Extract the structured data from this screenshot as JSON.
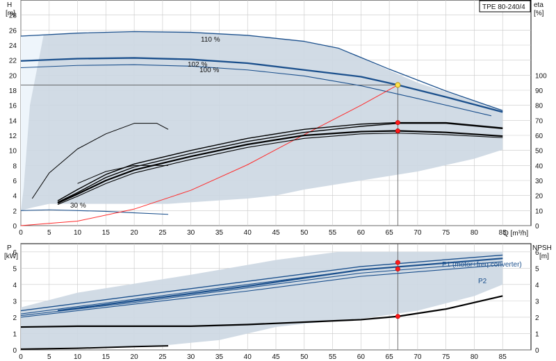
{
  "header": {
    "model": "TPE 80-240/4"
  },
  "colors": {
    "area": "#cdd8e3",
    "area_light": "#eef5fb",
    "curve_dark": "#1a4f8c",
    "grid": "#c8c8c8",
    "system": "#ff2a2a",
    "marker": "#ff1a1a",
    "duty": "#ffe34d",
    "black": "#000000"
  },
  "chart_data": [
    {
      "type": "line",
      "id": "head_efficiency",
      "x_axis": {
        "label": "Q [m³/h]",
        "range": [
          0,
          90
        ],
        "ticks": [
          0,
          5,
          10,
          15,
          20,
          25,
          30,
          35,
          40,
          45,
          50,
          55,
          60,
          65,
          70,
          75,
          80,
          85
        ]
      },
      "y_axis_left": {
        "label_top": "H",
        "label_unit": "[m]",
        "range": [
          0,
          30
        ],
        "ticks": [
          0,
          2,
          4,
          6,
          8,
          10,
          12,
          14,
          16,
          18,
          20,
          22,
          24,
          26,
          28
        ]
      },
      "y_axis_right": {
        "label_top": "eta",
        "label_unit": "[%]",
        "range": [
          0,
          150
        ],
        "ticks": [
          0,
          10,
          20,
          30,
          40,
          50,
          60,
          70,
          80,
          90,
          100
        ]
      },
      "grid": true,
      "annotations": [
        "110 %",
        "102 %",
        "100 %",
        "30 %"
      ],
      "operating_area": [
        [
          0,
          25.2
        ],
        [
          10,
          25.6
        ],
        [
          20,
          25.8
        ],
        [
          30,
          25.7
        ],
        [
          40,
          25.3
        ],
        [
          50,
          24.5
        ],
        [
          56,
          23.6
        ],
        [
          70,
          19.0
        ],
        [
          85,
          15.3
        ],
        [
          85,
          10.1
        ],
        [
          80,
          8.9
        ],
        [
          70,
          7.2
        ],
        [
          60,
          6.0
        ],
        [
          50,
          4.8
        ],
        [
          45,
          4.0
        ],
        [
          40,
          3.6
        ],
        [
          26,
          2.9
        ],
        [
          20,
          2.9
        ],
        [
          10,
          2.9
        ],
        [
          5,
          2.9
        ],
        [
          2,
          2.4
        ],
        [
          0,
          2.0
        ]
      ],
      "operating_area_light": [
        [
          0,
          25.2
        ],
        [
          4,
          25.3
        ],
        [
          1.6,
          16.0
        ],
        [
          0.5,
          5.0
        ],
        [
          0,
          2.0
        ]
      ],
      "series": [
        {
          "name": "110 %",
          "role": "head",
          "axis": "left",
          "width": 1.3,
          "points": [
            [
              0,
              25.2
            ],
            [
              10,
              25.6
            ],
            [
              20,
              25.8
            ],
            [
              30,
              25.7
            ],
            [
              40,
              25.3
            ],
            [
              50,
              24.5
            ],
            [
              56,
              23.6
            ],
            [
              65,
              20.8
            ],
            [
              75,
              17.9
            ],
            [
              85,
              15.3
            ]
          ]
        },
        {
          "name": "102 %",
          "role": "head",
          "axis": "left",
          "width": 2.3,
          "points": [
            [
              0,
              21.9
            ],
            [
              10,
              22.2
            ],
            [
              20,
              22.3
            ],
            [
              30,
              22.1
            ],
            [
              40,
              21.6
            ],
            [
              50,
              20.7
            ],
            [
              60,
              19.8
            ],
            [
              66.5,
              18.7
            ],
            [
              75,
              17.1
            ],
            [
              85,
              15.1
            ]
          ]
        },
        {
          "name": "100 %",
          "role": "head",
          "axis": "left",
          "width": 1.1,
          "points": [
            [
              0,
              21.0
            ],
            [
              10,
              21.3
            ],
            [
              20,
              21.4
            ],
            [
              30,
              21.2
            ],
            [
              40,
              20.7
            ],
            [
              50,
              19.9
            ],
            [
              60,
              18.6
            ],
            [
              70,
              16.9
            ],
            [
              83,
              14.6
            ]
          ]
        },
        {
          "name": "30 %",
          "role": "head",
          "axis": "left",
          "width": 1.1,
          "points": [
            [
              0,
              2.0
            ],
            [
              5,
              2.1
            ],
            [
              10,
              2.0
            ],
            [
              15,
              1.9
            ],
            [
              20,
              1.7
            ],
            [
              26,
              1.5
            ]
          ]
        },
        {
          "name": "",
          "role": "system",
          "axis": "left",
          "width": 1,
          "points": [
            [
              0,
              0
            ],
            [
              10,
              0.6
            ],
            [
              20,
              2.2
            ],
            [
              30,
              4.7
            ],
            [
              40,
              8.1
            ],
            [
              50,
              12.1
            ],
            [
              60,
              16.0
            ],
            [
              66.5,
              18.7
            ]
          ]
        },
        {
          "name": "",
          "role": "eta",
          "axis": "right",
          "width": 1,
          "points": [
            [
              2,
              18
            ],
            [
              5,
              35
            ],
            [
              10,
              51
            ],
            [
              15,
              61
            ],
            [
              20,
              68
            ],
            [
              24,
              68
            ],
            [
              26,
              64
            ]
          ]
        },
        {
          "name": "",
          "role": "eta",
          "axis": "right",
          "width": 1.4,
          "points": [
            [
              6.5,
              15.5
            ],
            [
              10,
              22
            ],
            [
              15,
              32
            ],
            [
              20,
              39
            ],
            [
              30,
              48
            ],
            [
              40,
              56
            ],
            [
              50,
              62
            ],
            [
              60,
              66
            ],
            [
              66.5,
              68
            ],
            [
              75,
              68
            ],
            [
              85,
              64.5
            ]
          ]
        },
        {
          "name": "",
          "role": "eta",
          "axis": "right",
          "width": 1.4,
          "points": [
            [
              6.5,
              16.5
            ],
            [
              10,
              24
            ],
            [
              15,
              34
            ],
            [
              20,
              41
            ],
            [
              30,
              50
            ],
            [
              40,
              58
            ],
            [
              50,
              64
            ],
            [
              60,
              67.5
            ],
            [
              66.5,
              68.5
            ],
            [
              75,
              68.5
            ],
            [
              85,
              65
            ]
          ]
        },
        {
          "name": "",
          "role": "eta",
          "axis": "right",
          "width": 2.2,
          "points": [
            [
              6.5,
              15
            ],
            [
              10,
              21
            ],
            [
              15,
              30
            ],
            [
              20,
              37
            ],
            [
              30,
              46
            ],
            [
              40,
              54
            ],
            [
              50,
              60
            ],
            [
              60,
              62.5
            ],
            [
              66.5,
              63
            ],
            [
              75,
              62
            ],
            [
              85,
              59.5
            ]
          ]
        },
        {
          "name": "",
          "role": "eta",
          "axis": "right",
          "width": 1.1,
          "points": [
            [
              6.5,
              14
            ],
            [
              10,
              19.5
            ],
            [
              15,
              28
            ],
            [
              20,
              35
            ],
            [
              30,
              44
            ],
            [
              40,
              52
            ],
            [
              50,
              58
            ],
            [
              60,
              61
            ],
            [
              66.5,
              61.5
            ],
            [
              75,
              60.5
            ],
            [
              85,
              58.5
            ]
          ]
        },
        {
          "name": "",
          "role": "eta",
          "axis": "right",
          "width": 1,
          "points": [
            [
              10,
              28
            ],
            [
              15,
              36
            ],
            [
              20,
              40
            ],
            [
              26,
              40
            ]
          ]
        }
      ],
      "duty_point": {
        "x": 66.5,
        "y": 18.7
      },
      "markers": [
        {
          "x": 66.5,
          "y": 68.5,
          "axis": "right"
        },
        {
          "x": 66.5,
          "y": 63,
          "axis": "right"
        }
      ],
      "crosshair": {
        "x": 66.5,
        "y": 18.7
      }
    },
    {
      "type": "line",
      "id": "power_npsh",
      "x_axis": {
        "range": [
          0,
          90
        ],
        "ticks": [
          0,
          5,
          10,
          15,
          20,
          25,
          30,
          35,
          40,
          45,
          50,
          55,
          60,
          65,
          70,
          75,
          80,
          85
        ]
      },
      "y_axis_left": {
        "label_top": "P",
        "label_unit": "[kW]",
        "range": [
          0,
          6.5
        ],
        "ticks": [
          0,
          1,
          2,
          3,
          4,
          5,
          6
        ]
      },
      "y_axis_right": {
        "label_top": "NPSH",
        "label_unit": "[m]",
        "range": [
          0,
          6.5
        ],
        "ticks": [
          0,
          1,
          2,
          3,
          4,
          5,
          6
        ]
      },
      "grid": true,
      "legend": [
        "P1 (motor+freq.converter)",
        "P2"
      ],
      "operating_area": [
        [
          0,
          2.6
        ],
        [
          10,
          3.5
        ],
        [
          30,
          4.6
        ],
        [
          45,
          5.5
        ],
        [
          56,
          6.0
        ],
        [
          85,
          6.0
        ],
        [
          85,
          4.0
        ],
        [
          80,
          3.3
        ],
        [
          70,
          2.4
        ],
        [
          60,
          1.9
        ],
        [
          50,
          1.6
        ],
        [
          45,
          1.4
        ],
        [
          35,
          0.6
        ],
        [
          26,
          0.3
        ],
        [
          10,
          0.15
        ],
        [
          0,
          0.1
        ]
      ],
      "series": [
        {
          "name": "P1 (motor+freq.converter)",
          "role": "power",
          "width": 1.4,
          "points": [
            [
              0,
              2.4
            ],
            [
              20,
              3.3
            ],
            [
              40,
              4.2
            ],
            [
              60,
              5.1
            ],
            [
              85,
              5.8
            ]
          ]
        },
        {
          "name": "",
          "role": "power",
          "width": 1.1,
          "points": [
            [
              0,
              2.2
            ],
            [
              20,
              3.1
            ],
            [
              40,
              4.0
            ],
            [
              60,
              4.9
            ],
            [
              85,
              5.6
            ]
          ]
        },
        {
          "name": "",
          "role": "power",
          "width": 1.1,
          "points": [
            [
              0,
              2.1
            ],
            [
              20,
              2.9
            ],
            [
              40,
              3.8
            ],
            [
              60,
              4.7
            ],
            [
              85,
              5.4
            ]
          ]
        },
        {
          "name": "P2",
          "role": "power",
          "width": 1.1,
          "points": [
            [
              0,
              2.0
            ],
            [
              20,
              2.8
            ],
            [
              40,
              3.6
            ],
            [
              60,
              4.5
            ],
            [
              85,
              5.2
            ]
          ]
        },
        {
          "name": "",
          "role": "power_band",
          "width": 2.2,
          "points": [
            [
              6.5,
              2.4
            ],
            [
              20,
              3.0
            ],
            [
              40,
              3.9
            ],
            [
              60,
              4.9
            ],
            [
              85,
              5.6
            ]
          ]
        },
        {
          "name": "",
          "role": "npsh",
          "width": 2.2,
          "points": [
            [
              0,
              1.4
            ],
            [
              10,
              1.45
            ],
            [
              20,
              1.45
            ],
            [
              30,
              1.45
            ],
            [
              40,
              1.55
            ],
            [
              50,
              1.7
            ],
            [
              60,
              1.85
            ],
            [
              66.5,
              2.05
            ],
            [
              75,
              2.5
            ],
            [
              85,
              3.3
            ]
          ]
        },
        {
          "name": "",
          "role": "power_low",
          "width": 2,
          "points": [
            [
              0,
              0.05
            ],
            [
              10,
              0.1
            ],
            [
              20,
              0.2
            ],
            [
              26,
              0.25
            ]
          ]
        }
      ],
      "markers": [
        {
          "x": 66.5,
          "y": 5.35
        },
        {
          "x": 66.5,
          "y": 4.95
        },
        {
          "x": 66.5,
          "y": 2.05
        }
      ]
    }
  ]
}
